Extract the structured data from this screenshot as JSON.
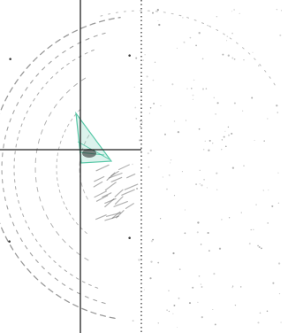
{
  "figure": {
    "colors": {
      "background": "#ffffff",
      "solid_crosshair": "#1f1f1f",
      "dotted_guide": "#2a2a2a",
      "arc_strokes": "#555555",
      "scatter_points": "#7a7a7a",
      "highlight_region": "#3fbf9a"
    },
    "corner_markers": {
      "top_left": "•",
      "top_right": "•",
      "bottom_left": "•",
      "bottom_right": "•"
    }
  }
}
